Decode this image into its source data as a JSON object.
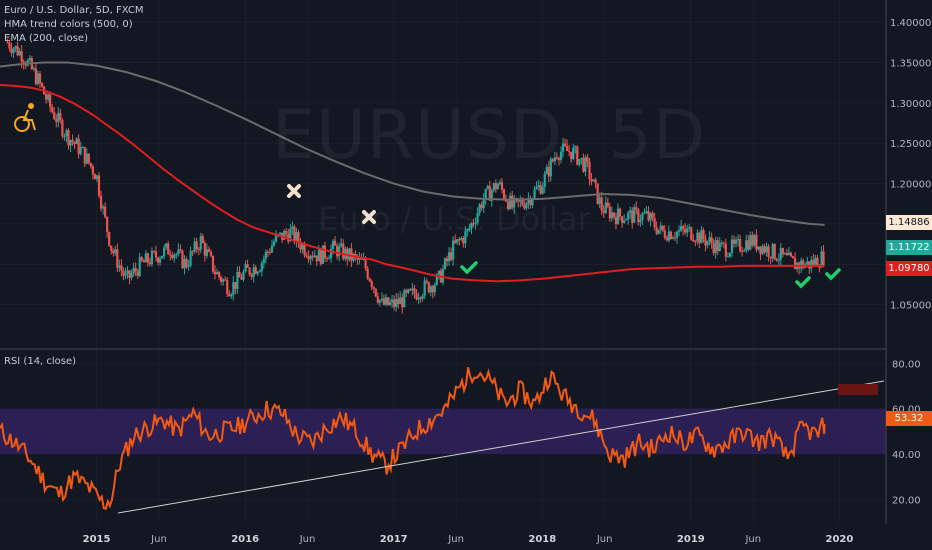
{
  "header": {
    "symbol_line": "Euro / U.S. Dollar, 5D, FXCM",
    "hma_line": "HMA trend colors (500, 0)",
    "ema_line": "EMA (200, close)",
    "rsi_line": "RSI (14, close)"
  },
  "watermark": {
    "ticker": "EURUSD, 5D",
    "name": "Euro / U.S. Dollar"
  },
  "price_tags": {
    "hma": "1.14886",
    "last": "1.11722",
    "ema": "1.09780",
    "rsi": "53.32"
  },
  "colors": {
    "background": "#131722",
    "grid": "#363a45",
    "candle_up": "#26a69a",
    "candle_down": "#ef5350",
    "ema": "#e01e1e",
    "hma": "#6b6b6b",
    "rsi_line": "#f05a14",
    "rsi_band": "#2b1f54",
    "trendline": "#cfcfcf",
    "check": "#1fcf6b",
    "cross": "#f4e1cd",
    "marker_orange": "#f5a623"
  },
  "chart_data": [
    {
      "type": "candlestick",
      "title": "Euro / U.S. Dollar, 5D, FXCM",
      "x_ticks": [
        "2015",
        "Jun",
        "2016",
        "Jun",
        "2017",
        "Jun",
        "2018",
        "Jun",
        "2019",
        "Jun",
        "2020"
      ],
      "y_ticks": [
        "1.40000",
        "1.35000",
        "1.30000",
        "1.25000",
        "1.20000",
        "1.15000",
        "1.10000",
        "1.05000"
      ],
      "xlim": [
        2014.35,
        2020.3
      ],
      "ylim": [
        1.0,
        1.41
      ],
      "grid": true,
      "close_series": {
        "name": "EURUSD",
        "x": [
          2014.4,
          2014.5,
          2014.6,
          2014.7,
          2014.8,
          2014.9,
          2015.0,
          2015.05,
          2015.1,
          2015.2,
          2015.3,
          2015.4,
          2015.5,
          2015.6,
          2015.7,
          2015.8,
          2015.9,
          2016.0,
          2016.1,
          2016.2,
          2016.3,
          2016.4,
          2016.5,
          2016.6,
          2016.7,
          2016.8,
          2016.85,
          2016.92,
          2017.0,
          2017.1,
          2017.2,
          2017.3,
          2017.4,
          2017.5,
          2017.6,
          2017.7,
          2017.8,
          2017.9,
          2018.0,
          2018.1,
          2018.2,
          2018.3,
          2018.4,
          2018.5,
          2018.6,
          2018.7,
          2018.8,
          2018.9,
          2019.0,
          2019.1,
          2019.2,
          2019.3,
          2019.4,
          2019.5,
          2019.6,
          2019.7,
          2019.8,
          2019.9
        ],
        "close": [
          1.375,
          1.36,
          1.33,
          1.29,
          1.26,
          1.24,
          1.21,
          1.16,
          1.12,
          1.08,
          1.1,
          1.11,
          1.12,
          1.1,
          1.13,
          1.09,
          1.07,
          1.09,
          1.1,
          1.13,
          1.14,
          1.12,
          1.11,
          1.12,
          1.11,
          1.1,
          1.08,
          1.05,
          1.05,
          1.06,
          1.07,
          1.08,
          1.12,
          1.14,
          1.18,
          1.2,
          1.17,
          1.18,
          1.2,
          1.24,
          1.24,
          1.22,
          1.17,
          1.16,
          1.16,
          1.16,
          1.14,
          1.14,
          1.14,
          1.13,
          1.12,
          1.12,
          1.13,
          1.12,
          1.11,
          1.1,
          1.1,
          1.11
        ],
        "ema_close": [
          1.322,
          1.321,
          1.319,
          1.315,
          1.308,
          1.299,
          1.288,
          1.282,
          1.275,
          1.262,
          1.248,
          1.233,
          1.218,
          1.204,
          1.191,
          1.178,
          1.166,
          1.155,
          1.146,
          1.14,
          1.134,
          1.128,
          1.122,
          1.117,
          1.113,
          1.109,
          1.106,
          1.1,
          1.094,
          1.087,
          1.082,
          1.08,
          1.079,
          1.08,
          1.082,
          1.085,
          1.088,
          1.091,
          1.094,
          1.095,
          1.096,
          1.097,
          1.097,
          1.098,
          1.098,
          1.098,
          1.098,
          1.0978
        ],
        "ema_x": [
          2014.35,
          2014.45,
          2014.55,
          2014.65,
          2014.75,
          2014.85,
          2014.95,
          2015.0,
          2015.05,
          2015.15,
          2015.25,
          2015.35,
          2015.45,
          2015.55,
          2015.65,
          2015.75,
          2015.85,
          2015.95,
          2016.05,
          2016.15,
          2016.25,
          2016.35,
          2016.45,
          2016.55,
          2016.65,
          2016.75,
          2016.85,
          2016.95,
          2017.1,
          2017.25,
          2017.4,
          2017.55,
          2017.7,
          2017.85,
          2018.0,
          2018.15,
          2018.3,
          2018.45,
          2018.6,
          2018.75,
          2018.9,
          2019.05,
          2019.2,
          2019.35,
          2019.5,
          2019.65,
          2019.8,
          2019.9
        ],
        "hma_x": [
          2014.35,
          2014.5,
          2014.65,
          2014.8,
          2015.0,
          2015.2,
          2015.4,
          2015.6,
          2015.8,
          2016.0,
          2016.2,
          2016.4,
          2016.6,
          2016.8,
          2017.0,
          2017.2,
          2017.4,
          2017.6,
          2017.8,
          2018.0,
          2018.2,
          2018.4,
          2018.6,
          2018.8,
          2019.0,
          2019.2,
          2019.4,
          2019.6,
          2019.8,
          2019.9
        ],
        "hma_close": [
          1.345,
          1.348,
          1.35,
          1.35,
          1.346,
          1.338,
          1.327,
          1.313,
          1.297,
          1.28,
          1.262,
          1.244,
          1.228,
          1.213,
          1.2,
          1.19,
          1.184,
          1.181,
          1.18,
          1.181,
          1.184,
          1.187,
          1.186,
          1.182,
          1.175,
          1.168,
          1.161,
          1.155,
          1.15,
          1.14886
        ]
      }
    },
    {
      "type": "line",
      "title": "RSI (14, close)",
      "y_ticks": [
        "80.00",
        "60.00",
        "40.00",
        "20.00"
      ],
      "ylim": [
        10,
        85
      ],
      "band": [
        40,
        60
      ],
      "series": [
        {
          "name": "RSI",
          "x": [
            2014.35,
            2014.45,
            2014.55,
            2014.65,
            2014.75,
            2014.85,
            2014.95,
            2015.05,
            2015.1,
            2015.15,
            2015.25,
            2015.35,
            2015.45,
            2015.55,
            2015.65,
            2015.75,
            2015.85,
            2015.95,
            2016.05,
            2016.15,
            2016.25,
            2016.35,
            2016.45,
            2016.55,
            2016.65,
            2016.75,
            2016.85,
            2016.95,
            2017.05,
            2017.15,
            2017.25,
            2017.35,
            2017.45,
            2017.55,
            2017.65,
            2017.75,
            2017.85,
            2017.95,
            2018.05,
            2018.15,
            2018.25,
            2018.35,
            2018.45,
            2018.55,
            2018.65,
            2018.75,
            2018.85,
            2018.95,
            2019.05,
            2019.15,
            2019.25,
            2019.35,
            2019.45,
            2019.55,
            2019.65,
            2019.75,
            2019.85,
            2019.9
          ],
          "values": [
            50,
            45,
            38,
            28,
            22,
            30,
            25,
            18,
            20,
            35,
            48,
            52,
            55,
            50,
            58,
            48,
            50,
            52,
            56,
            60,
            58,
            48,
            45,
            52,
            56,
            50,
            40,
            35,
            42,
            50,
            55,
            60,
            70,
            78,
            72,
            62,
            68,
            62,
            75,
            65,
            60,
            55,
            40,
            38,
            45,
            42,
            50,
            45,
            48,
            42,
            45,
            50,
            45,
            48,
            38,
            52,
            48,
            53.32
          ]
        }
      ]
    }
  ]
}
